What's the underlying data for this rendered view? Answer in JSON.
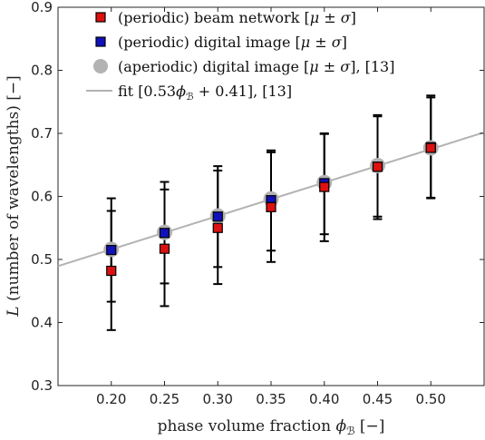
{
  "chart_data": {
    "type": "scatter",
    "xlabel": "phase volume fraction ϕ_ℬ [−]",
    "ylabel": "L (number of wavelengths) [−]",
    "xlim": [
      0.15,
      0.55
    ],
    "ylim": [
      0.3,
      0.9
    ],
    "x_ticks": [
      "0.20",
      "0.25",
      "0.30",
      "0.35",
      "0.40",
      "0.45",
      "0.50"
    ],
    "y_ticks": [
      "0.3",
      "0.4",
      "0.5",
      "0.6",
      "0.7",
      "0.8",
      "0.9"
    ],
    "grid": false,
    "legend_position": "top-left",
    "colors": {
      "beam": "#dd1111",
      "digital": "#1111bb",
      "aperiodic": "#b3b3b3",
      "fit": "#b3b3b3"
    },
    "series": [
      {
        "name": "(periodic) beam network [μ ± σ]",
        "marker": "square",
        "x": [
          0.2,
          0.25,
          0.3,
          0.35,
          0.4,
          0.45,
          0.5
        ],
        "y": [
          0.482,
          0.517,
          0.55,
          0.583,
          0.615,
          0.647,
          0.677
        ],
        "lower": [
          0.388,
          0.426,
          0.461,
          0.496,
          0.529,
          0.564,
          0.597
        ],
        "upper": [
          0.577,
          0.611,
          0.641,
          0.67,
          0.699,
          0.729,
          0.757
        ]
      },
      {
        "name": "(periodic) digital image [μ ± σ]",
        "marker": "square",
        "x": [
          0.2,
          0.25,
          0.3,
          0.35,
          0.4,
          0.45,
          0.5
        ],
        "y": [
          0.515,
          0.542,
          0.568,
          0.594,
          0.621,
          0.647,
          0.678
        ],
        "lower": [
          0.433,
          0.462,
          0.488,
          0.514,
          0.54,
          0.568,
          0.598
        ],
        "upper": [
          0.597,
          0.623,
          0.648,
          0.673,
          0.7,
          0.727,
          0.76
        ]
      },
      {
        "name": "(aperiodic) digital image [μ ± σ], [13]",
        "marker": "circle",
        "x": [
          0.2,
          0.25,
          0.3,
          0.35,
          0.4,
          0.45,
          0.5
        ],
        "y": [
          0.516,
          0.543,
          0.569,
          0.596,
          0.622,
          0.649,
          0.677
        ]
      },
      {
        "name": "fit [0.53ϕ_ℬ + 0.41], [13]",
        "type": "line",
        "slope": 0.53,
        "intercept": 0.41
      }
    ]
  },
  "legend": [
    {
      "text": "(periodic) beam network [",
      "math": "μ ± σ",
      "tail": "]"
    },
    {
      "text": "(periodic) digital image [",
      "math": "μ ± σ",
      "tail": "]"
    },
    {
      "text": "(aperiodic) digital image [",
      "math": "μ ± σ",
      "tail": "], [13]"
    },
    {
      "text": "fit [0.53",
      "math": "ϕ",
      "sub": "ℬ",
      "tail": " + 0.41], [13]"
    }
  ],
  "axis_text": {
    "x_main": "phase volume fraction ",
    "x_sym": "ϕ",
    "x_sub": "ℬ",
    "x_tail": " [−]",
    "y_sym": "L",
    "y_tail": " (number of wavelengths) [−]"
  }
}
